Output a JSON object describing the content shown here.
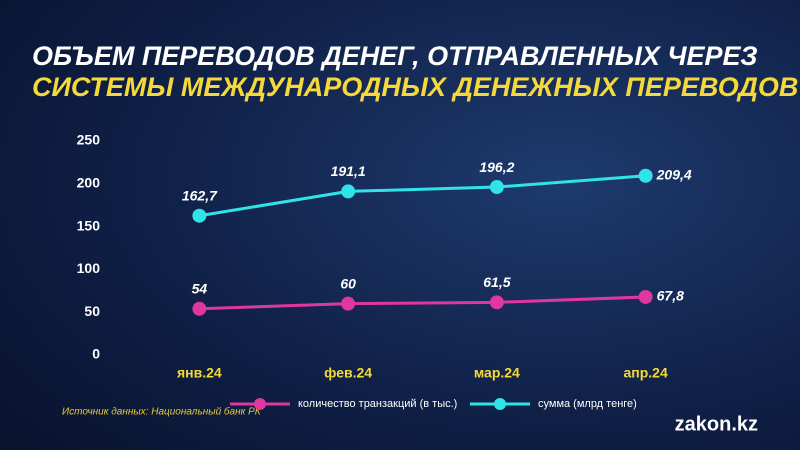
{
  "chart_data": {
    "type": "line",
    "title": [
      "ОБЪЕМ ПЕРЕВОДОВ ДЕНЕГ, ОТПРАВЛЕННЫХ ЧЕРЕЗ",
      "СИСТЕМЫ МЕЖДУНАРОДНЫХ ДЕНЕЖНЫХ ПЕРЕВОДОВ"
    ],
    "categories": [
      "янв.24",
      "фев.24",
      "мар.24",
      "апр.24"
    ],
    "series": [
      {
        "name": "количество транзакций (в тыс.)",
        "color": "#e0379f",
        "values": [
          54,
          60,
          61.5,
          67.8
        ],
        "value_labels": [
          "54",
          "60",
          "61,5",
          "67,8"
        ]
      },
      {
        "name": "сумма (млрд тенге)",
        "color": "#2fe3e8",
        "values": [
          162.7,
          191.1,
          196.2,
          209.4
        ],
        "value_labels": [
          "162,7",
          "191,1",
          "196,2",
          "209,4"
        ]
      }
    ],
    "ylim": [
      0,
      250
    ],
    "yticks": [
      0,
      50,
      100,
      150,
      200,
      250
    ],
    "grid": false,
    "source": "Источник данных: Национальный банк РК",
    "logo": "zakon.kz"
  }
}
